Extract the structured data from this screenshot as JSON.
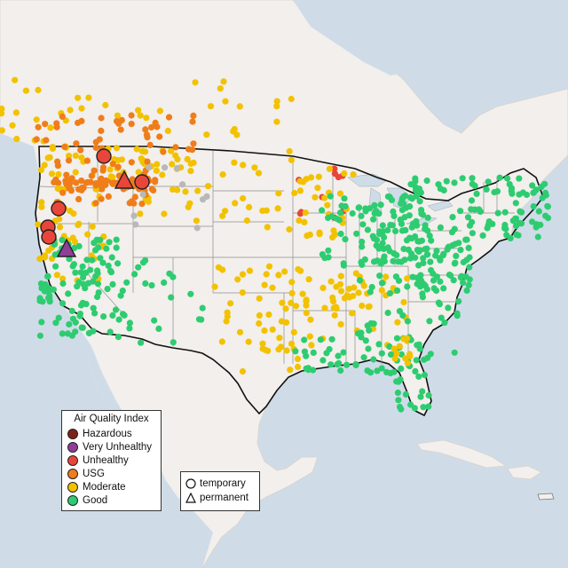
{
  "legend": {
    "title": "Air Quality Index",
    "items": [
      {
        "label": "Hazardous",
        "color": "#7e2318"
      },
      {
        "label": "Very Unhealthy",
        "color": "#8f3f97"
      },
      {
        "label": "Unhealthy",
        "color": "#e8463b"
      },
      {
        "label": "USG",
        "color": "#ef7d1a"
      },
      {
        "label": "Moderate",
        "color": "#f2c200"
      },
      {
        "label": "Good",
        "color": "#2ecc71"
      }
    ]
  },
  "shape_legend": {
    "items": [
      {
        "label": "temporary",
        "shape": "circle"
      },
      {
        "label": "permanent",
        "shape": "triangle"
      }
    ]
  },
  "colors": {
    "ocean": "#cfdce8",
    "land": "#f2efec",
    "us_border": "#111111",
    "state_lines": "#8f8f8f",
    "no_data": "#b8b8b8"
  }
}
